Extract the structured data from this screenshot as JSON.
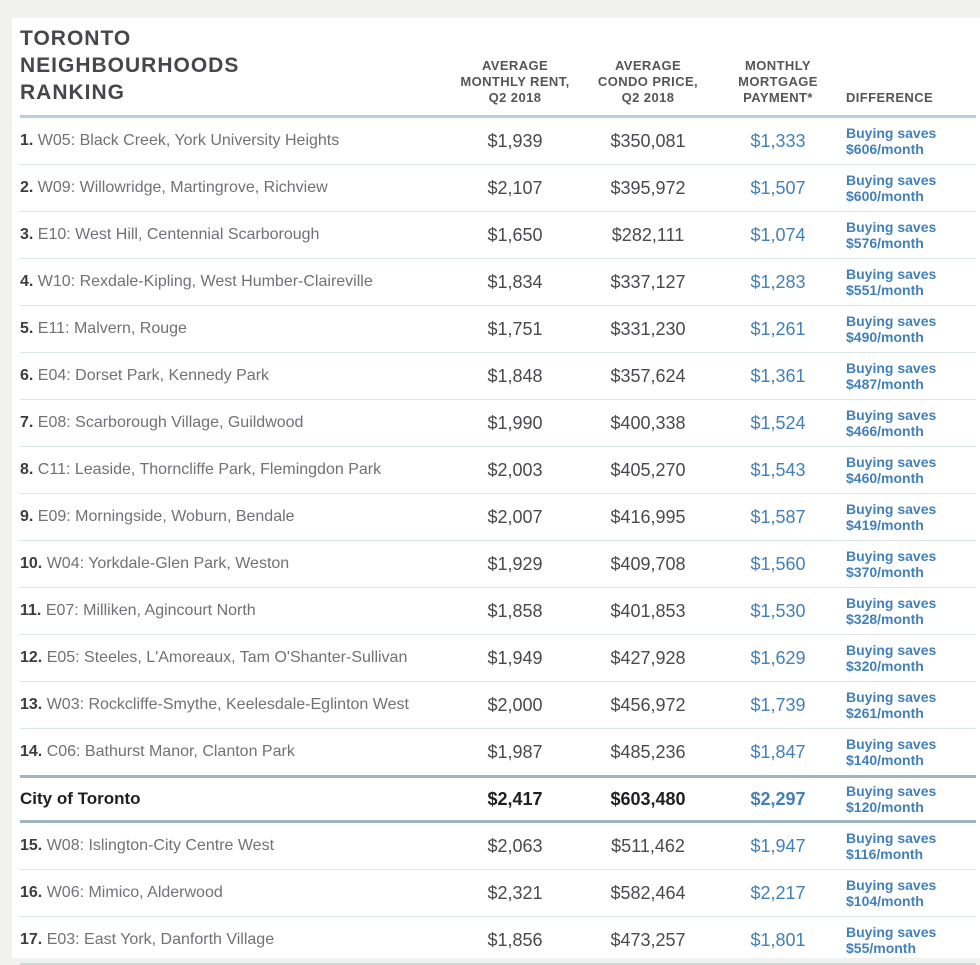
{
  "header": {
    "title": "TORONTO NEIGHBOURHOODS RANKING",
    "col_rent": "AVERAGE\nMONTHLY RENT,\nQ2 2018",
    "col_price": "AVERAGE\nCONDO PRICE,\nQ2 2018",
    "col_mortgage": "MONTHLY\nMORTGAGE\nPAYMENT*",
    "col_difference": "DIFFERENCE"
  },
  "colors": {
    "accent_blue": "#4280ba",
    "title_text": "#47474b",
    "header_text": "#555559",
    "header_line": "#b9cfd8",
    "row_line": "#dce6e5",
    "summary_line": "#9eb6c0",
    "summary_text": "#1f1f23",
    "rank_text": "#3c3c41",
    "name_text": "#717176",
    "value_text": "#4a4a4e"
  },
  "chart_data": {
    "type": "table",
    "title": "TORONTO NEIGHBOURHOODS RANKING",
    "columns": [
      "Neighbourhood",
      "AVERAGE MONTHLY RENT, Q2 2018",
      "AVERAGE CONDO PRICE, Q2 2018",
      "MONTHLY MORTGAGE PAYMENT*",
      "DIFFERENCE"
    ],
    "rows": [
      {
        "rank": "1.",
        "name": "W05: Black Creek, York University Heights",
        "rent": "$1,939",
        "price": "$350,081",
        "mortgage": "$1,333",
        "difference": "Buying saves\n$606/month",
        "summary": false
      },
      {
        "rank": "2.",
        "name": "W09: Willowridge, Martingrove, Richview",
        "rent": "$2,107",
        "price": "$395,972",
        "mortgage": "$1,507",
        "difference": "Buying saves\n$600/month",
        "summary": false
      },
      {
        "rank": "3.",
        "name": "E10: West Hill, Centennial Scarborough",
        "rent": "$1,650",
        "price": "$282,111",
        "mortgage": "$1,074",
        "difference": "Buying saves\n$576/month",
        "summary": false
      },
      {
        "rank": "4.",
        "name": "W10: Rexdale-Kipling, West Humber-Claireville",
        "rent": "$1,834",
        "price": "$337,127",
        "mortgage": "$1,283",
        "difference": "Buying saves\n$551/month",
        "summary": false
      },
      {
        "rank": "5.",
        "name": "E11: Malvern, Rouge",
        "rent": "$1,751",
        "price": "$331,230",
        "mortgage": "$1,261",
        "difference": "Buying saves\n$490/month",
        "summary": false
      },
      {
        "rank": "6.",
        "name": "E04: Dorset Park, Kennedy Park",
        "rent": "$1,848",
        "price": "$357,624",
        "mortgage": "$1,361",
        "difference": "Buying saves\n$487/month",
        "summary": false
      },
      {
        "rank": "7.",
        "name": "E08: Scarborough Village, Guildwood",
        "rent": "$1,990",
        "price": "$400,338",
        "mortgage": "$1,524",
        "difference": "Buying saves\n$466/month",
        "summary": false
      },
      {
        "rank": "8.",
        "name": "C11: Leaside, Thorncliffe Park, Flemingdon Park",
        "rent": "$2,003",
        "price": "$405,270",
        "mortgage": "$1,543",
        "difference": "Buying saves\n$460/month",
        "summary": false
      },
      {
        "rank": "9.",
        "name": "E09: Morningside, Woburn, Bendale",
        "rent": "$2,007",
        "price": "$416,995",
        "mortgage": "$1,587",
        "difference": "Buying saves\n$419/month",
        "summary": false
      },
      {
        "rank": "10.",
        "name": "W04: Yorkdale-Glen Park, Weston",
        "rent": "$1,929",
        "price": "$409,708",
        "mortgage": "$1,560",
        "difference": "Buying saves\n$370/month",
        "summary": false
      },
      {
        "rank": "11.",
        "name": "E07: Milliken, Agincourt North",
        "rent": "$1,858",
        "price": "$401,853",
        "mortgage": "$1,530",
        "difference": "Buying saves\n$328/month",
        "summary": false
      },
      {
        "rank": "12.",
        "name": "E05: Steeles, L'Amoreaux, Tam O'Shanter-Sullivan",
        "rent": "$1,949",
        "price": "$427,928",
        "mortgage": "$1,629",
        "difference": "Buying saves\n$320/month",
        "summary": false
      },
      {
        "rank": "13.",
        "name": "W03: Rockcliffe-Smythe, Keelesdale-Eglinton West",
        "rent": "$2,000",
        "price": "$456,972",
        "mortgage": "$1,739",
        "difference": "Buying saves\n$261/month",
        "summary": false
      },
      {
        "rank": "14.",
        "name": "C06: Bathurst Manor, Clanton Park",
        "rent": "$1,987",
        "price": "$485,236",
        "mortgage": "$1,847",
        "difference": "Buying saves\n$140/month",
        "summary": false
      },
      {
        "rank": "",
        "name": "City of Toronto",
        "rent": "$2,417",
        "price": "$603,480",
        "mortgage": "$2,297",
        "difference": "Buying saves\n$120/month",
        "summary": true
      },
      {
        "rank": "15.",
        "name": "W08: Islington-City Centre West",
        "rent": "$2,063",
        "price": "$511,462",
        "mortgage": "$1,947",
        "difference": "Buying saves\n$116/month",
        "summary": false
      },
      {
        "rank": "16.",
        "name": "W06: Mimico, Alderwood",
        "rent": "$2,321",
        "price": "$582,464",
        "mortgage": "$2,217",
        "difference": "Buying saves\n$104/month",
        "summary": false
      },
      {
        "rank": "17.",
        "name": "E03: East York, Danforth Village",
        "rent": "$1,856",
        "price": "$473,257",
        "mortgage": "$1,801",
        "difference": "Buying saves\n$55/month",
        "summary": false
      }
    ]
  }
}
